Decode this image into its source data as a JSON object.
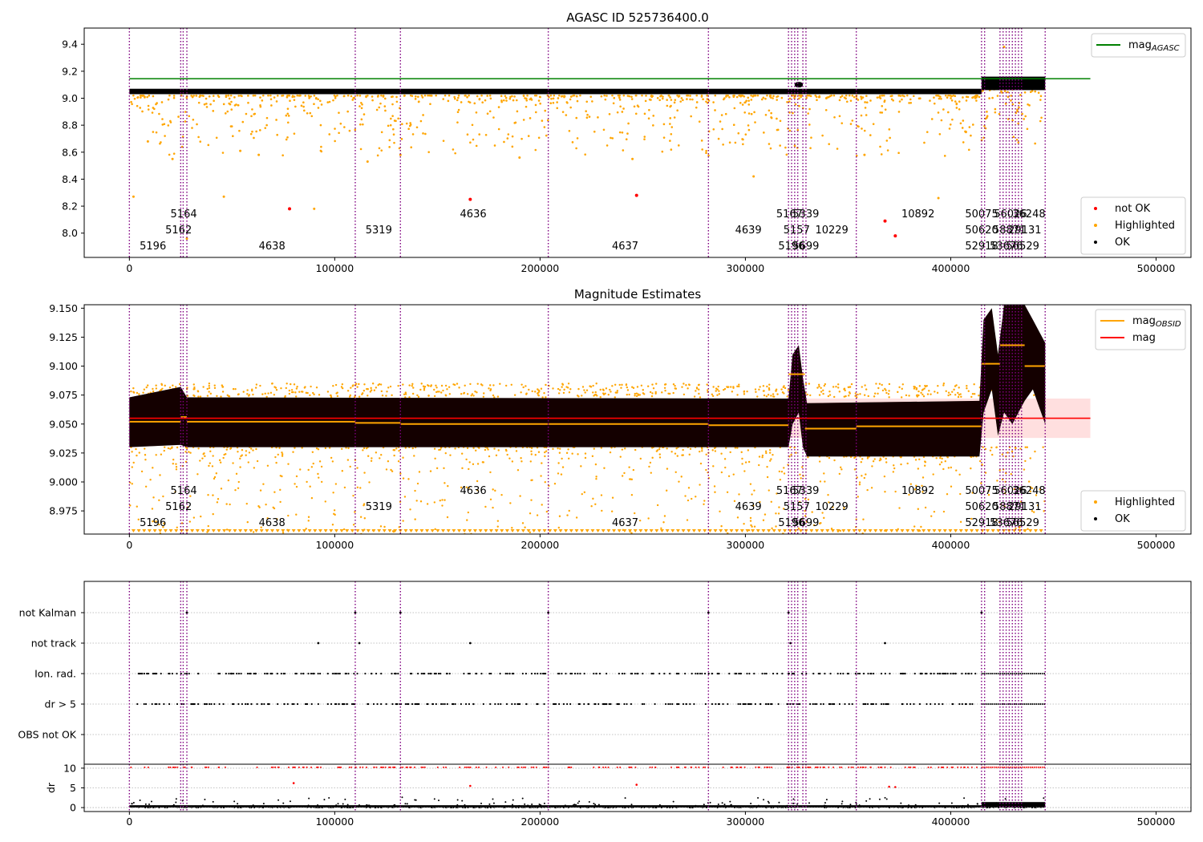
{
  "chart_data": [
    {
      "type": "scatter",
      "title": "AGASC ID 525736400.0",
      "xlim": [
        -22000,
        517000
      ],
      "ylim": [
        7.82,
        9.52
      ],
      "xticks": [
        0,
        100000,
        200000,
        300000,
        400000,
        500000
      ],
      "xtick_labels": [
        "0",
        "100000",
        "200000",
        "300000",
        "400000",
        "500000"
      ],
      "yticks": [
        8.0,
        8.2,
        8.4,
        8.6,
        8.8,
        9.0,
        9.2,
        9.4
      ],
      "ytick_labels": [
        "8.0",
        "8.2",
        "8.4",
        "8.6",
        "8.8",
        "9.0",
        "9.2",
        "9.4"
      ],
      "mag_agasc": 9.145,
      "mag_agasc_xrange": [
        0,
        468000
      ],
      "ok_band": {
        "x": [
          0,
          415000
        ],
        "y": [
          9.03,
          9.07
        ]
      },
      "ok_band_late": {
        "x": [
          415000,
          446000
        ],
        "y": [
          9.06,
          9.16
        ]
      },
      "ok_bump": {
        "x": [
          324000,
          328000
        ],
        "y": [
          9.08,
          9.12
        ]
      },
      "not_ok_points": [
        [
          78000,
          8.18
        ],
        [
          166000,
          8.25
        ],
        [
          247000,
          8.28
        ],
        [
          368000,
          8.09
        ],
        [
          373000,
          7.98
        ]
      ],
      "highlighted_outliers": [
        [
          2000,
          8.27
        ],
        [
          9000,
          8.68
        ],
        [
          21000,
          8.55
        ],
        [
          28000,
          7.96
        ],
        [
          46000,
          8.27
        ],
        [
          54000,
          8.61
        ],
        [
          63000,
          8.58
        ],
        [
          90000,
          8.18
        ],
        [
          116000,
          8.53
        ],
        [
          132000,
          8.58
        ],
        [
          190000,
          8.56
        ],
        [
          245000,
          8.55
        ],
        [
          304000,
          8.42
        ],
        [
          358000,
          8.58
        ],
        [
          394000,
          8.26
        ],
        [
          426000,
          9.38
        ]
      ],
      "legend": {
        "position": "top-right",
        "entries": [
          {
            "label": "mag",
            "sub": "AGASC",
            "color": "#008000"
          }
        ]
      },
      "legend2": {
        "position": "bottom-right",
        "entries": [
          {
            "label": "not OK",
            "color": "#ff0000"
          },
          {
            "label": "Highlighted",
            "color": "#ffa500"
          },
          {
            "label": "OK",
            "color": "#000000"
          }
        ]
      }
    },
    {
      "type": "scatter",
      "title": "Magnitude Estimates",
      "xlim": [
        -22000,
        517000
      ],
      "ylim": [
        8.955,
        9.153
      ],
      "xticks": [
        0,
        100000,
        200000,
        300000,
        400000,
        500000
      ],
      "xtick_labels": [
        "0",
        "100000",
        "200000",
        "300000",
        "400000",
        "500000"
      ],
      "yticks": [
        8.975,
        9.0,
        9.025,
        9.05,
        9.075,
        9.1,
        9.125,
        9.15
      ],
      "ytick_labels": [
        "8.975",
        "9.000",
        "9.025",
        "9.050",
        "9.075",
        "9.100",
        "9.125",
        "9.150"
      ],
      "mag_line": 9.055,
      "mag_band": [
        9.038,
        9.072
      ],
      "mag_line_xrange": [
        0,
        468000
      ],
      "mag_obsid_segments": [
        {
          "x": [
            0,
            25000
          ],
          "y": 9.052
        },
        {
          "x": [
            25000,
            28000
          ],
          "y": 9.056
        },
        {
          "x": [
            28000,
            110000
          ],
          "y": 9.052
        },
        {
          "x": [
            110000,
            132000
          ],
          "y": 9.051
        },
        {
          "x": [
            132000,
            204000
          ],
          "y": 9.05
        },
        {
          "x": [
            204000,
            282000
          ],
          "y": 9.05
        },
        {
          "x": [
            282000,
            321000
          ],
          "y": 9.049
        },
        {
          "x": [
            321000,
            329000
          ],
          "y": 9.093
        },
        {
          "x": [
            329000,
            354000
          ],
          "y": 9.046
        },
        {
          "x": [
            354000,
            415000
          ],
          "y": 9.048
        },
        {
          "x": [
            415000,
            424000
          ],
          "y": 9.102
        },
        {
          "x": [
            424000,
            436000
          ],
          "y": 9.118
        },
        {
          "x": [
            436000,
            446000
          ],
          "y": 9.1
        }
      ],
      "ok_envelope": [
        [
          0,
          9.03,
          9.073
        ],
        [
          25000,
          9.032,
          9.082
        ],
        [
          28000,
          9.03,
          9.073
        ],
        [
          321000,
          9.03,
          9.072
        ],
        [
          323000,
          9.05,
          9.11
        ],
        [
          326000,
          9.06,
          9.118
        ],
        [
          328000,
          9.03,
          9.09
        ],
        [
          330000,
          9.022,
          9.068
        ],
        [
          414000,
          9.022,
          9.07
        ],
        [
          416000,
          9.06,
          9.14
        ],
        [
          420000,
          9.08,
          9.15
        ],
        [
          423000,
          9.04,
          9.11
        ],
        [
          426000,
          9.06,
          9.153
        ],
        [
          430000,
          9.05,
          9.153
        ],
        [
          436000,
          9.07,
          9.153
        ],
        [
          440000,
          9.08,
          9.14
        ],
        [
          446000,
          9.05,
          9.12
        ]
      ],
      "legend": {
        "position": "top-right",
        "entries": [
          {
            "label": "mag",
            "sub": "OBSID",
            "color": "#ffa500"
          },
          {
            "label": "mag",
            "sub": "",
            "color": "#ff0000"
          }
        ]
      },
      "legend2": {
        "position": "bottom-right",
        "entries": [
          {
            "label": "Highlighted",
            "color": "#ffa500"
          },
          {
            "label": "OK",
            "color": "#000000"
          }
        ]
      }
    },
    {
      "type": "scatter",
      "title": "",
      "xlim": [
        -22000,
        517000
      ],
      "categories": [
        "not Kalman",
        "not track",
        "Ion. rad.",
        "dr > 5",
        "OBS not OK"
      ],
      "xticks": [
        0,
        100000,
        200000,
        300000,
        400000,
        500000
      ],
      "xtick_labels": [
        "0",
        "100000",
        "200000",
        "300000",
        "400000",
        "500000"
      ],
      "flag_points": {
        "not Kalman": [
          28000,
          110000,
          132000,
          204000,
          282000,
          321000,
          415000
        ],
        "not track": [
          92000,
          112000,
          166000,
          322000,
          368000
        ],
        "Ion. rad.": "dense",
        "dr > 5": "dense"
      },
      "dr_panel": {
        "ylabel": "dr",
        "ylim": [
          -1,
          11
        ],
        "yticks": [
          0,
          5,
          10
        ],
        "ytick_labels": [
          "0",
          "5",
          "10"
        ],
        "clip_value": 10,
        "red_points": [
          [
            80000,
            6.2
          ],
          [
            166000,
            5.5
          ],
          [
            247000,
            5.8
          ],
          [
            370000,
            5.3
          ],
          [
            373000,
            5.2
          ]
        ]
      }
    }
  ],
  "obsid_lines": [
    0,
    25000,
    26200,
    28000,
    110000,
    132000,
    204000,
    282000,
    321000,
    322500,
    324000,
    325500,
    328000,
    329500,
    354000,
    415000,
    416500,
    424000,
    425500,
    427000,
    428500,
    430000,
    431500,
    433000,
    434500,
    446000
  ],
  "obsid_labels": [
    {
      "text": "5196",
      "x": 5000,
      "row": 2
    },
    {
      "text": "5162",
      "x": 17500,
      "row": 1
    },
    {
      "text": "5164",
      "x": 20000,
      "row": 0
    },
    {
      "text": "4638",
      "x": 63000,
      "row": 2
    },
    {
      "text": "5319",
      "x": 115000,
      "row": 1
    },
    {
      "text": "4636",
      "x": 161000,
      "row": 0
    },
    {
      "text": "4637",
      "x": 235000,
      "row": 2
    },
    {
      "text": "4639",
      "x": 295000,
      "row": 1
    },
    {
      "text": "5167",
      "x": 315000,
      "row": 0
    },
    {
      "text": "5339",
      "x": 323000,
      "row": 0
    },
    {
      "text": "5157",
      "x": 318500,
      "row": 1
    },
    {
      "text": "5196",
      "x": 316000,
      "row": 2
    },
    {
      "text": "5699",
      "x": 323000,
      "row": 2
    },
    {
      "text": "10229",
      "x": 334000,
      "row": 1
    },
    {
      "text": "10892",
      "x": 376000,
      "row": 0
    },
    {
      "text": "50075",
      "x": 407000,
      "row": 0
    },
    {
      "text": "56026",
      "x": 421000,
      "row": 0
    },
    {
      "text": "36248",
      "x": 430000,
      "row": 0
    },
    {
      "text": "50620",
      "x": 407000,
      "row": 1
    },
    {
      "text": "58871",
      "x": 420500,
      "row": 1
    },
    {
      "text": "29131",
      "x": 428000,
      "row": 1
    },
    {
      "text": "52918",
      "x": 407000,
      "row": 2
    },
    {
      "text": "53676",
      "x": 419000,
      "row": 2
    },
    {
      "text": "56529",
      "x": 427000,
      "row": 2
    }
  ]
}
